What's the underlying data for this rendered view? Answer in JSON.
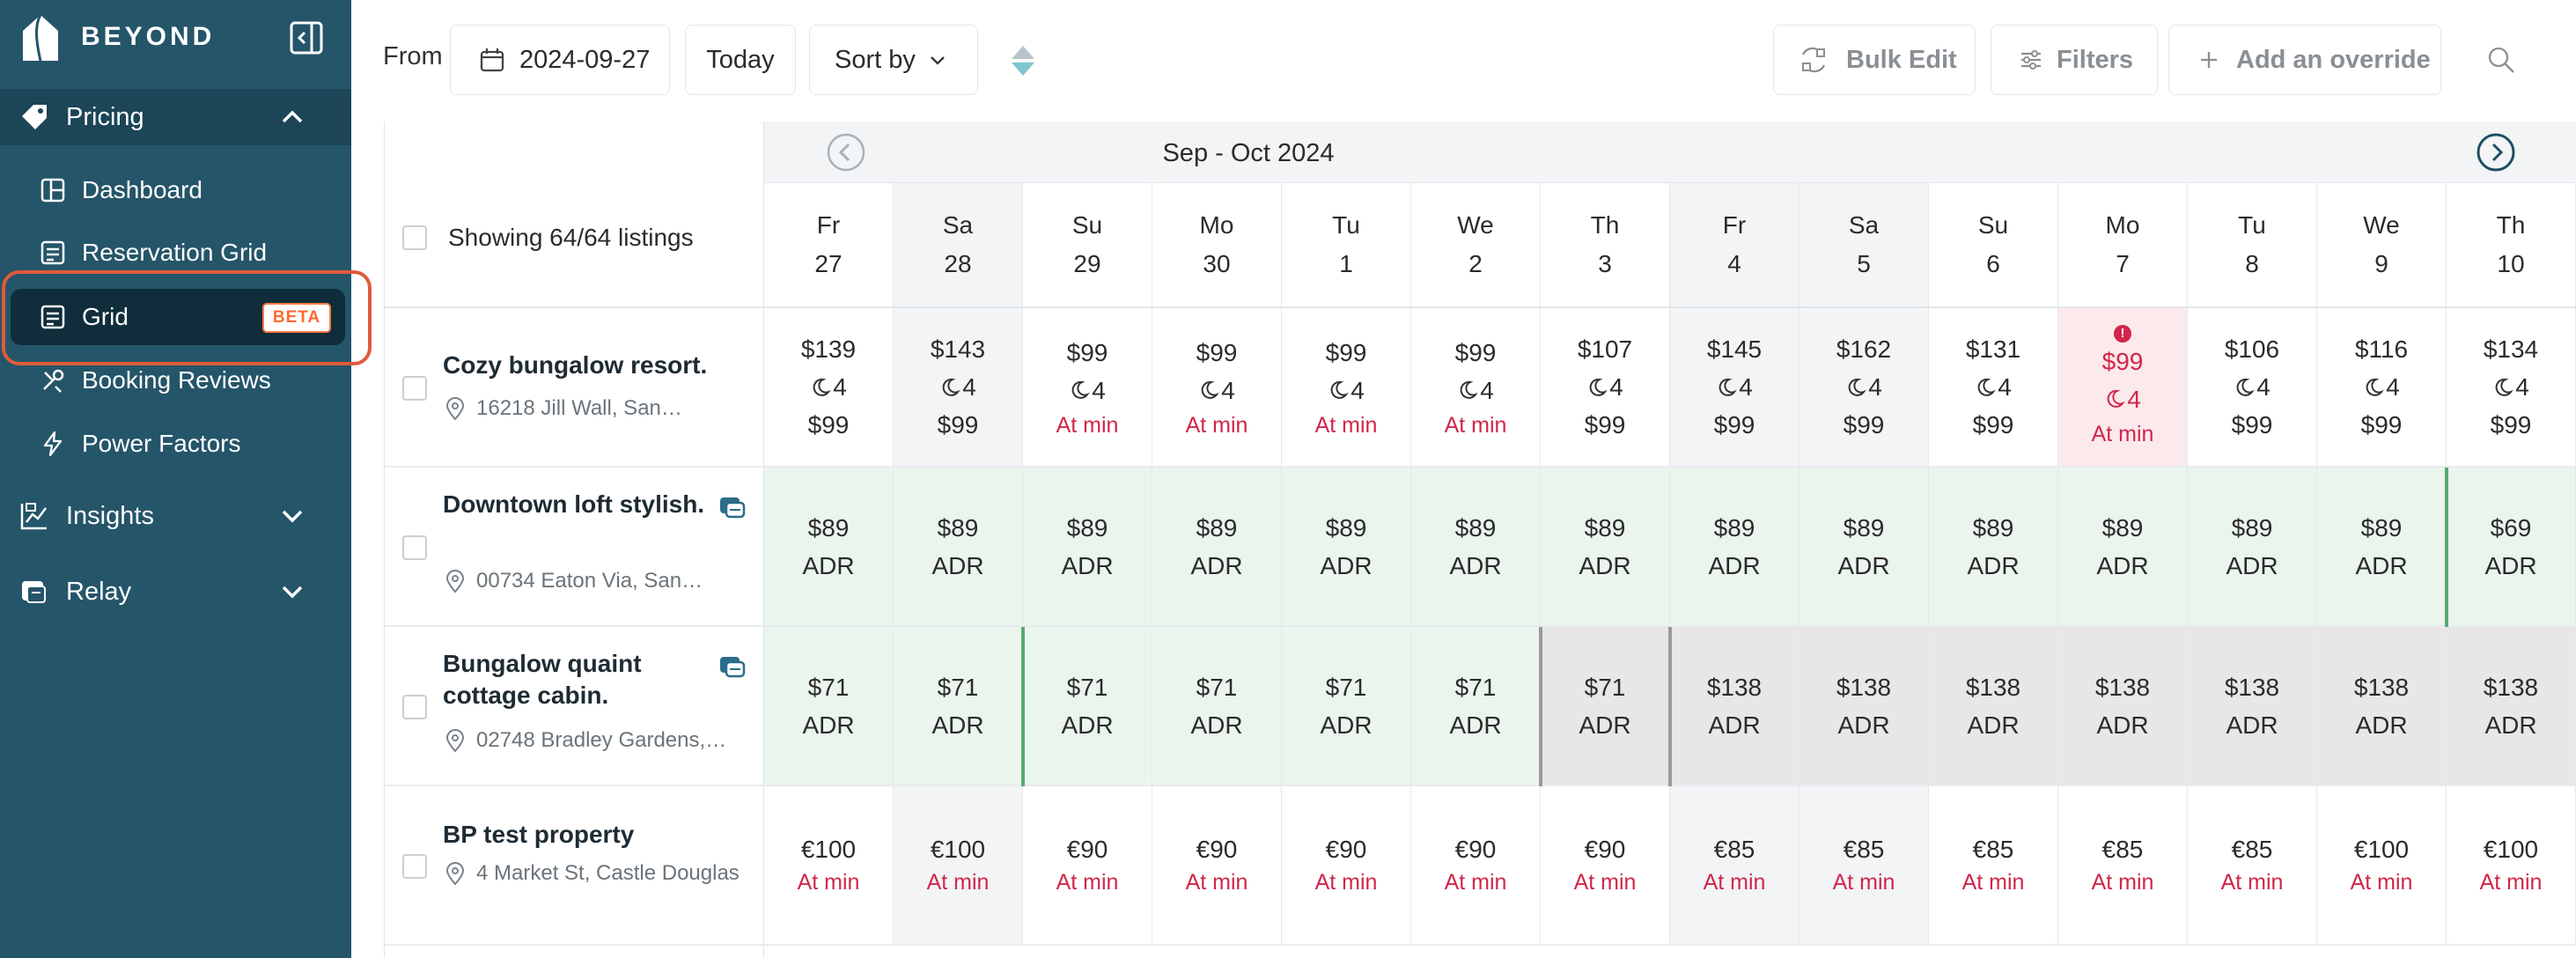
{
  "sidebar": {
    "brand": "BEYOND",
    "sections": {
      "pricing": "Pricing",
      "insights": "Insights",
      "relay": "Relay"
    },
    "pricing_items": {
      "dashboard": "Dashboard",
      "reservation_grid": "Reservation Grid",
      "grid": "Grid",
      "grid_badge": "BETA",
      "booking_reviews": "Booking Reviews",
      "power_factors": "Power Factors"
    }
  },
  "toolbar": {
    "from_label": "From",
    "date_value": "2024-09-27",
    "today": "Today",
    "sort_by": "Sort by",
    "bulk_edit": "Bulk Edit",
    "filters": "Filters",
    "add_override": "Add an override"
  },
  "grid": {
    "showing": "Showing 64/64 listings",
    "month_label": "Sep - Oct 2024",
    "days": [
      {
        "dow": "Fr",
        "day": "27"
      },
      {
        "dow": "Sa",
        "day": "28"
      },
      {
        "dow": "Su",
        "day": "29"
      },
      {
        "dow": "Mo",
        "day": "30"
      },
      {
        "dow": "Tu",
        "day": "1"
      },
      {
        "dow": "We",
        "day": "2"
      },
      {
        "dow": "Th",
        "day": "3"
      },
      {
        "dow": "Fr",
        "day": "4"
      },
      {
        "dow": "Sa",
        "day": "5"
      },
      {
        "dow": "Su",
        "day": "6"
      },
      {
        "dow": "Mo",
        "day": "7"
      },
      {
        "dow": "Tu",
        "day": "8"
      },
      {
        "dow": "We",
        "day": "9"
      },
      {
        "dow": "Th",
        "day": "10"
      }
    ],
    "listings": [
      {
        "name": "Cozy bungalow resort.",
        "address": "16218 Jill Wall, San…",
        "cells": [
          {
            "price": "$139",
            "stay": "4",
            "sub": "$99"
          },
          {
            "price": "$143",
            "stay": "4",
            "sub": "$99"
          },
          {
            "price": "$99",
            "stay": "4",
            "sub": "At min"
          },
          {
            "price": "$99",
            "stay": "4",
            "sub": "At min"
          },
          {
            "price": "$99",
            "stay": "4",
            "sub": "At min"
          },
          {
            "price": "$99",
            "stay": "4",
            "sub": "At min"
          },
          {
            "price": "$107",
            "stay": "4",
            "sub": "$99"
          },
          {
            "price": "$145",
            "stay": "4",
            "sub": "$99"
          },
          {
            "price": "$162",
            "stay": "4",
            "sub": "$99"
          },
          {
            "price": "$131",
            "stay": "4",
            "sub": "$99"
          },
          {
            "price": "$99",
            "stay": "4",
            "sub": "At min",
            "alert": "!"
          },
          {
            "price": "$106",
            "stay": "4",
            "sub": "$99"
          },
          {
            "price": "$116",
            "stay": "4",
            "sub": "$99"
          },
          {
            "price": "$134",
            "stay": "4",
            "sub": "$99"
          }
        ]
      },
      {
        "name": "Downtown loft stylish.",
        "address": "00734 Eaton Via, San…",
        "cells": [
          {
            "price": "$89",
            "sub": "ADR"
          },
          {
            "price": "$89",
            "sub": "ADR"
          },
          {
            "price": "$89",
            "sub": "ADR"
          },
          {
            "price": "$89",
            "sub": "ADR"
          },
          {
            "price": "$89",
            "sub": "ADR"
          },
          {
            "price": "$89",
            "sub": "ADR"
          },
          {
            "price": "$89",
            "sub": "ADR"
          },
          {
            "price": "$89",
            "sub": "ADR"
          },
          {
            "price": "$89",
            "sub": "ADR"
          },
          {
            "price": "$89",
            "sub": "ADR"
          },
          {
            "price": "$89",
            "sub": "ADR"
          },
          {
            "price": "$89",
            "sub": "ADR"
          },
          {
            "price": "$89",
            "sub": "ADR"
          },
          {
            "price": "$69",
            "sub": "ADR"
          }
        ]
      },
      {
        "name": "Bungalow quaint cottage cabin.",
        "address": "02748 Bradley Gardens,…",
        "cells": [
          {
            "price": "$71",
            "sub": "ADR"
          },
          {
            "price": "$71",
            "sub": "ADR"
          },
          {
            "price": "$71",
            "sub": "ADR"
          },
          {
            "price": "$71",
            "sub": "ADR"
          },
          {
            "price": "$71",
            "sub": "ADR"
          },
          {
            "price": "$71",
            "sub": "ADR"
          },
          {
            "price": "$71",
            "sub": "ADR"
          },
          {
            "price": "$138",
            "sub": "ADR"
          },
          {
            "price": "$138",
            "sub": "ADR"
          },
          {
            "price": "$138",
            "sub": "ADR"
          },
          {
            "price": "$138",
            "sub": "ADR"
          },
          {
            "price": "$138",
            "sub": "ADR"
          },
          {
            "price": "$138",
            "sub": "ADR"
          },
          {
            "price": "$138",
            "sub": "ADR"
          }
        ]
      },
      {
        "name": "BP test property",
        "address": "4 Market St, Castle Douglas",
        "cells": [
          {
            "price": "€100",
            "sub": "At min"
          },
          {
            "price": "€100",
            "sub": "At min"
          },
          {
            "price": "€90",
            "sub": "At min"
          },
          {
            "price": "€90",
            "sub": "At min"
          },
          {
            "price": "€90",
            "sub": "At min"
          },
          {
            "price": "€90",
            "sub": "At min"
          },
          {
            "price": "€90",
            "sub": "At min"
          },
          {
            "price": "€85",
            "sub": "At min"
          },
          {
            "price": "€85",
            "sub": "At min"
          },
          {
            "price": "€85",
            "sub": "At min"
          },
          {
            "price": "€85",
            "sub": "At min"
          },
          {
            "price": "€85",
            "sub": "At min"
          },
          {
            "price": "€100",
            "sub": "At min"
          },
          {
            "price": "€100",
            "sub": "At min"
          }
        ]
      }
    ]
  },
  "colors": {
    "sidebar_bg": "#255569",
    "selected_bg": "#0f2d3a",
    "beta_accent": "#ff6a30",
    "at_min_red": "#d1264a",
    "booked_green": "#eaf5ee",
    "blocked_gray": "#e7e7e7"
  }
}
